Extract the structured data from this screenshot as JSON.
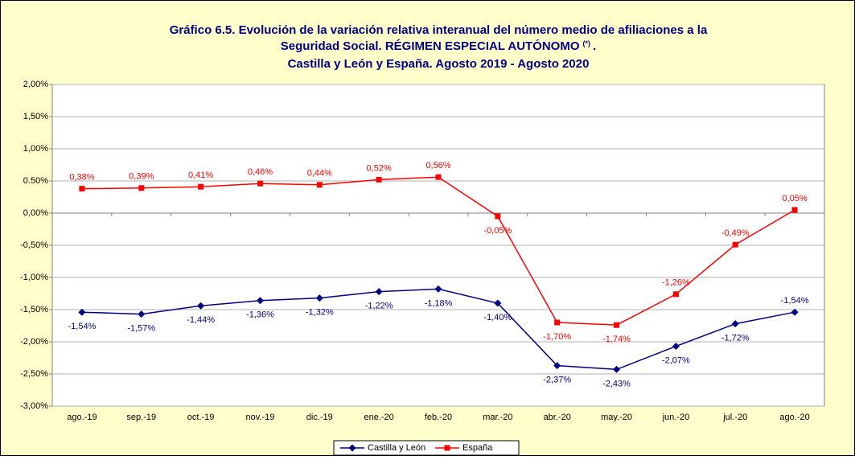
{
  "chart_data": {
    "type": "line",
    "title": {
      "line1": "Gráfico 6.5. Evolución de la variación relativa interanual del número medio de  afiliaciones a la",
      "line2": "Seguridad Social. RÉGIMEN ESPECIAL AUTÓNOMO",
      "note": "(*)",
      "line2_end": ".",
      "line3": "Castilla y León y España. Agosto 2019 - Agosto 2020"
    },
    "categories": [
      "ago.-19",
      "sep.-19",
      "oct.-19",
      "nov.-19",
      "dic.-19",
      "ene.-20",
      "feb.-20",
      "mar.-20",
      "abr.-20",
      "may.-20",
      "jun.-20",
      "jul.-20",
      "ago.-20"
    ],
    "series": [
      {
        "name": "Castilla y León",
        "color": "#000080",
        "marker": "diamond",
        "values": [
          -1.54,
          -1.57,
          -1.44,
          -1.36,
          -1.32,
          -1.22,
          -1.18,
          -1.4,
          -2.37,
          -2.43,
          -2.07,
          -1.72,
          -1.54
        ],
        "value_labels": [
          "-1,54%",
          "-1,57%",
          "-1,44%",
          "-1,36%",
          "-1,32%",
          "-1,22%",
          "-1,18%",
          "-1,40%",
          "-2,37%",
          "-2,43%",
          "-2,07%",
          "-1,72%",
          "-1,54%"
        ]
      },
      {
        "name": "España",
        "color": "#ff0000",
        "marker": "square",
        "values": [
          0.38,
          0.39,
          0.41,
          0.46,
          0.44,
          0.52,
          0.56,
          -0.05,
          -1.7,
          -1.74,
          -1.26,
          -0.49,
          0.05
        ],
        "value_labels": [
          "0,38%",
          "0,39%",
          "0,41%",
          "0,46%",
          "0,44%",
          "0,52%",
          "0,56%",
          "-0,05%",
          "-1,70%",
          "-1,74%",
          "-1,26%",
          "-0,49%",
          "0,05%"
        ]
      }
    ],
    "ylim": [
      -3,
      2
    ],
    "yticks": [
      {
        "value": -3,
        "label": "-3,00%"
      },
      {
        "value": -2.5,
        "label": "-2,50%"
      },
      {
        "value": -2,
        "label": "-2,00%"
      },
      {
        "value": -1.5,
        "label": "-1,50%"
      },
      {
        "value": -1,
        "label": "-1,00%"
      },
      {
        "value": -0.5,
        "label": "-0,50%"
      },
      {
        "value": 0,
        "label": "0,00%"
      },
      {
        "value": 0.5,
        "label": "0.50%"
      },
      {
        "value": 1,
        "label": "1,00%"
      },
      {
        "value": 1.5,
        "label": "1,50%"
      },
      {
        "value": 2,
        "label": "2,00%"
      }
    ],
    "grid": true,
    "legend": "bottom"
  }
}
